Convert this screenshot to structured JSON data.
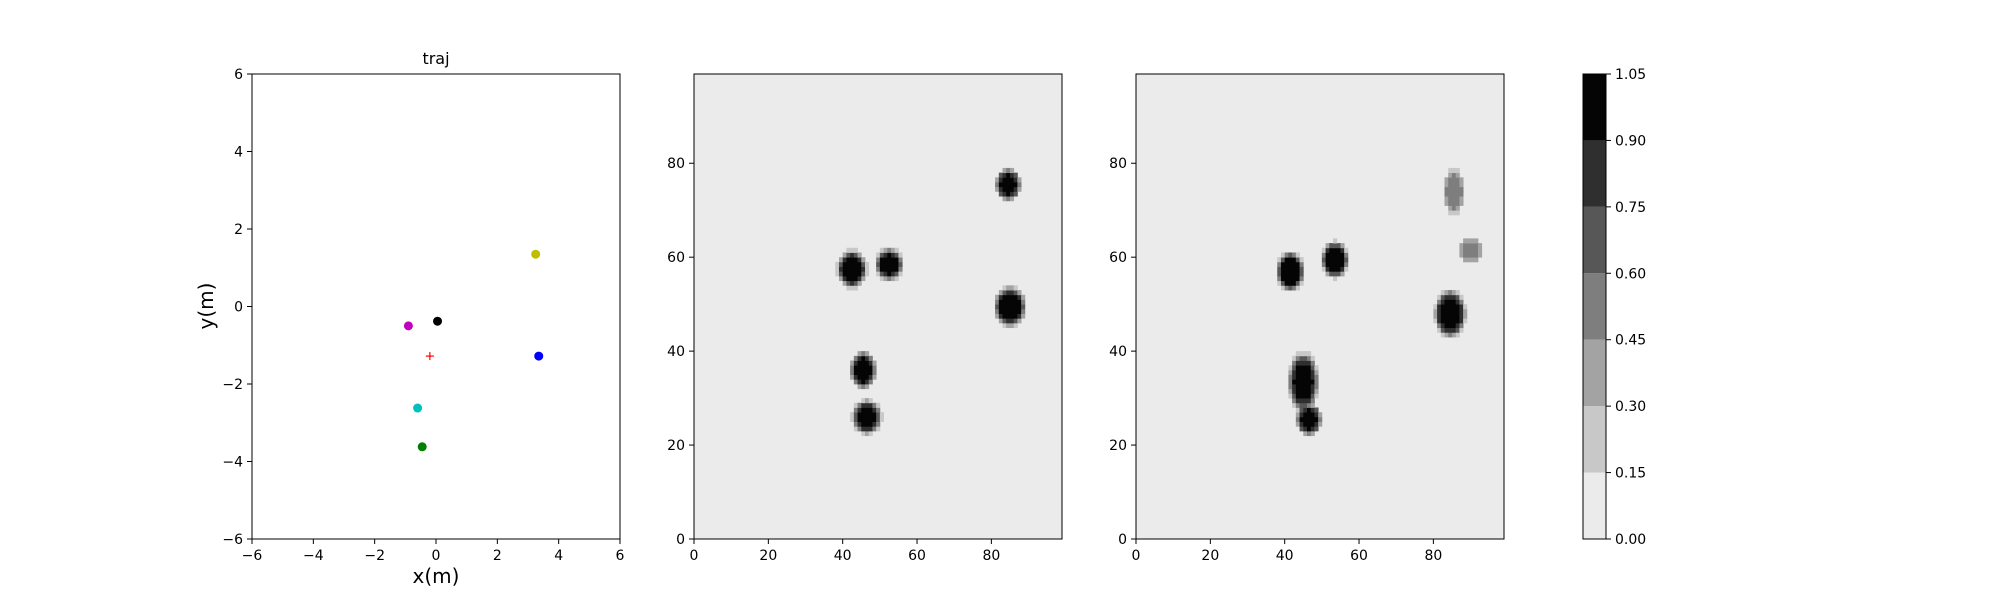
{
  "chart_data": [
    {
      "type": "scatter",
      "title": "traj",
      "xlabel": "x(m)",
      "ylabel": "y(m)",
      "xlim": [
        -6,
        6
      ],
      "ylim": [
        -6,
        6
      ],
      "xticks": [
        -6,
        -4,
        -2,
        0,
        2,
        4,
        6
      ],
      "yticks": [
        -6,
        -4,
        -2,
        0,
        2,
        4,
        6
      ],
      "grid": false,
      "series": [
        {
          "name": "yellow-agent",
          "color": "#bfbf00",
          "marker": "circle",
          "x": 3.25,
          "y": 1.35
        },
        {
          "name": "magenta-agent",
          "color": "#bf00bf",
          "marker": "circle",
          "x": -0.9,
          "y": -0.5
        },
        {
          "name": "black-agent",
          "color": "#000000",
          "marker": "circle",
          "x": 0.05,
          "y": -0.38
        },
        {
          "name": "blue-agent",
          "color": "#0000ff",
          "marker": "circle",
          "x": 3.35,
          "y": -1.28
        },
        {
          "name": "cyan-agent",
          "color": "#00bfbf",
          "marker": "circle",
          "x": -0.6,
          "y": -2.62
        },
        {
          "name": "green-agent",
          "color": "#008000",
          "marker": "circle",
          "x": -0.45,
          "y": -3.62
        },
        {
          "name": "robot",
          "color": "#ff0000",
          "marker": "plus",
          "x": -0.2,
          "y": -1.28
        }
      ]
    },
    {
      "type": "heatmap",
      "title": "",
      "xlabel": "",
      "ylabel": "",
      "xlim": [
        0,
        99
      ],
      "ylim": [
        0,
        99
      ],
      "xticks": [
        0,
        20,
        40,
        60,
        80
      ],
      "yticks": [
        0,
        20,
        40,
        60,
        80
      ],
      "background_value": 0.05,
      "blobs": [
        {
          "x": 42.5,
          "y": 57.5,
          "rx": 3.5,
          "ry": 3.5,
          "value": 1.0
        },
        {
          "x": 52.5,
          "y": 58.5,
          "rx": 3.2,
          "ry": 3.0,
          "value": 1.0
        },
        {
          "x": 84.5,
          "y": 75.5,
          "rx": 3.0,
          "ry": 3.0,
          "value": 1.0
        },
        {
          "x": 85.0,
          "y": 49.5,
          "rx": 3.8,
          "ry": 3.8,
          "value": 1.0
        },
        {
          "x": 45.5,
          "y": 36.0,
          "rx": 3.0,
          "ry": 3.5,
          "value": 1.0
        },
        {
          "x": 46.5,
          "y": 26.0,
          "rx": 3.5,
          "ry": 3.2,
          "value": 1.0
        }
      ]
    },
    {
      "type": "heatmap",
      "title": "",
      "xlabel": "",
      "ylabel": "",
      "xlim": [
        0,
        99
      ],
      "ylim": [
        0,
        99
      ],
      "xticks": [
        0,
        20,
        40,
        60,
        80
      ],
      "yticks": [
        0,
        20,
        40,
        60,
        80
      ],
      "background_value": 0.05,
      "blobs": [
        {
          "x": 41.5,
          "y": 57.0,
          "rx": 3.3,
          "ry": 3.8,
          "value": 1.0
        },
        {
          "x": 53.5,
          "y": 59.5,
          "rx": 3.2,
          "ry": 3.4,
          "value": 1.0
        },
        {
          "x": 85.5,
          "y": 74.0,
          "rx": 2.5,
          "ry": 4.5,
          "value": 0.55
        },
        {
          "x": 90.0,
          "y": 61.5,
          "rx": 3.0,
          "ry": 2.5,
          "value": 0.5
        },
        {
          "x": 84.5,
          "y": 48.0,
          "rx": 3.8,
          "ry": 4.5,
          "value": 1.0
        },
        {
          "x": 45.0,
          "y": 33.5,
          "rx": 3.5,
          "ry": 5.5,
          "value": 1.0
        },
        {
          "x": 46.5,
          "y": 25.5,
          "rx": 3.0,
          "ry": 3.0,
          "value": 1.0
        }
      ]
    }
  ],
  "colorbar": {
    "levels": [
      0.0,
      0.15,
      0.3,
      0.45,
      0.6,
      0.75,
      0.9,
      1.05
    ],
    "tick_labels": [
      "0.00",
      "0.15",
      "0.30",
      "0.45",
      "0.60",
      "0.75",
      "0.90",
      "1.05"
    ],
    "colors": [
      "#ebebeb",
      "#c8c8c8",
      "#a3a3a3",
      "#7e7e7e",
      "#575757",
      "#2f2f2f",
      "#050505"
    ]
  }
}
